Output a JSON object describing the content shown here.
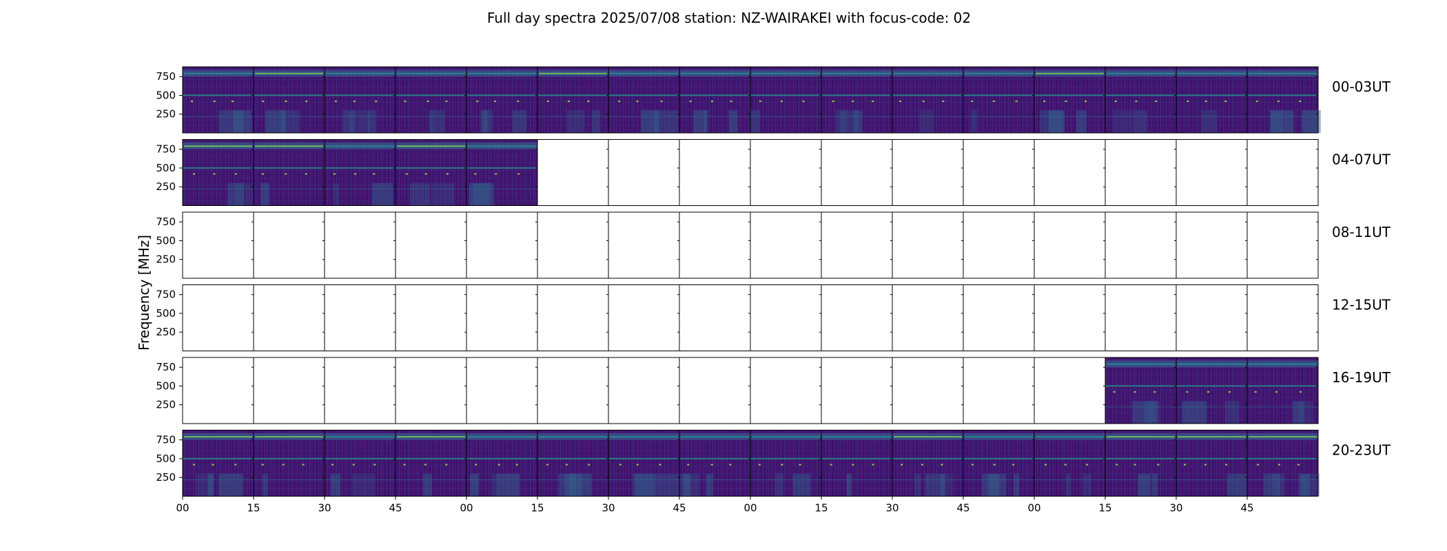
{
  "chart_data": {
    "type": "heatmap",
    "title": "Full day spectra 2025/07/08 station: NZ-WAIRAKEI with focus-code: 02",
    "ylabel": "Frequency [MHz]",
    "xlabel": "",
    "y_ticks": [
      "250",
      "500",
      "750"
    ],
    "x_ticks": [
      "00",
      "15",
      "30",
      "45",
      "00",
      "15",
      "30",
      "45",
      "00",
      "15",
      "30",
      "45",
      "00",
      "15",
      "30",
      "45"
    ],
    "colormap": "viridis",
    "rows": [
      {
        "label": "00-03UT",
        "filled": [
          1,
          1,
          1,
          1,
          1,
          1,
          1,
          1,
          1,
          1,
          1,
          1,
          1,
          1,
          1,
          1
        ]
      },
      {
        "label": "04-07UT",
        "filled": [
          1,
          1,
          1,
          1,
          1,
          0,
          0,
          0,
          0,
          0,
          0,
          0,
          0,
          0,
          0,
          0
        ]
      },
      {
        "label": "08-11UT",
        "filled": [
          0,
          0,
          0,
          0,
          0,
          0,
          0,
          0,
          0,
          0,
          0,
          0,
          0,
          0,
          0,
          0
        ]
      },
      {
        "label": "12-15UT",
        "filled": [
          0,
          0,
          0,
          0,
          0,
          0,
          0,
          0,
          0,
          0,
          0,
          0,
          0,
          0,
          0,
          0
        ]
      },
      {
        "label": "16-19UT",
        "filled": [
          0,
          0,
          0,
          0,
          0,
          0,
          0,
          0,
          0,
          0,
          0,
          0,
          0,
          1,
          1,
          1
        ]
      },
      {
        "label": "20-23UT",
        "filled": [
          1,
          1,
          1,
          1,
          1,
          1,
          1,
          1,
          1,
          1,
          1,
          1,
          1,
          1,
          1,
          1
        ]
      }
    ]
  }
}
